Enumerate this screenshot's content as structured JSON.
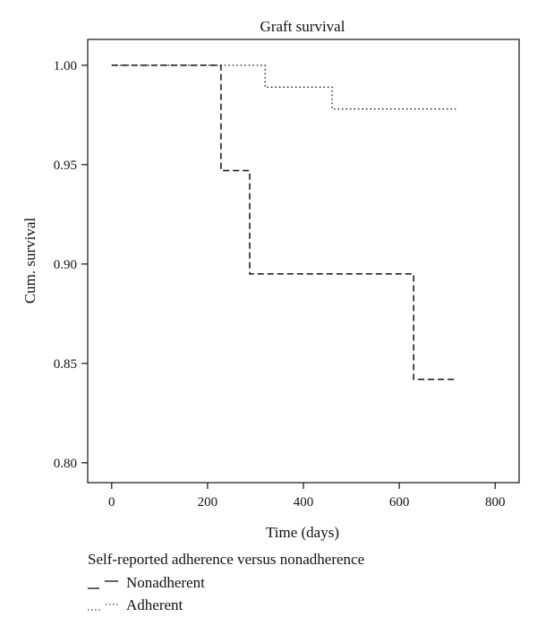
{
  "chart_data": {
    "type": "line",
    "title": "Graft survival",
    "xlabel": "Time (days)",
    "ylabel": "Cum. survival",
    "xlim": [
      -50,
      850
    ],
    "ylim": [
      0.79,
      1.013
    ],
    "xticks": [
      0,
      200,
      400,
      600,
      800
    ],
    "yticks": [
      0.8,
      0.85,
      0.9,
      0.95,
      1.0
    ],
    "xtick_labels": [
      "0",
      "200",
      "400",
      "600",
      "800"
    ],
    "ytick_labels": [
      "0.80",
      "0.85",
      "0.90",
      "0.95",
      "1.00"
    ],
    "grid": false,
    "legend": {
      "title": "Self-reported adherence versus nonadherence",
      "placement": "bottom-left"
    },
    "series": [
      {
        "name": "Nonadherent",
        "style": "dashed",
        "color": "#111111",
        "points": [
          [
            0,
            1.0
          ],
          [
            228,
            1.0
          ],
          [
            228,
            0.947
          ],
          [
            288,
            0.947
          ],
          [
            288,
            0.895
          ],
          [
            630,
            0.895
          ],
          [
            630,
            0.842
          ],
          [
            718,
            0.842
          ]
        ]
      },
      {
        "name": "Adherent",
        "style": "dotted",
        "color": "#111111",
        "points": [
          [
            0,
            1.0
          ],
          [
            320,
            1.0
          ],
          [
            320,
            0.989
          ],
          [
            460,
            0.989
          ],
          [
            460,
            0.978
          ],
          [
            718,
            0.978
          ]
        ]
      }
    ]
  }
}
